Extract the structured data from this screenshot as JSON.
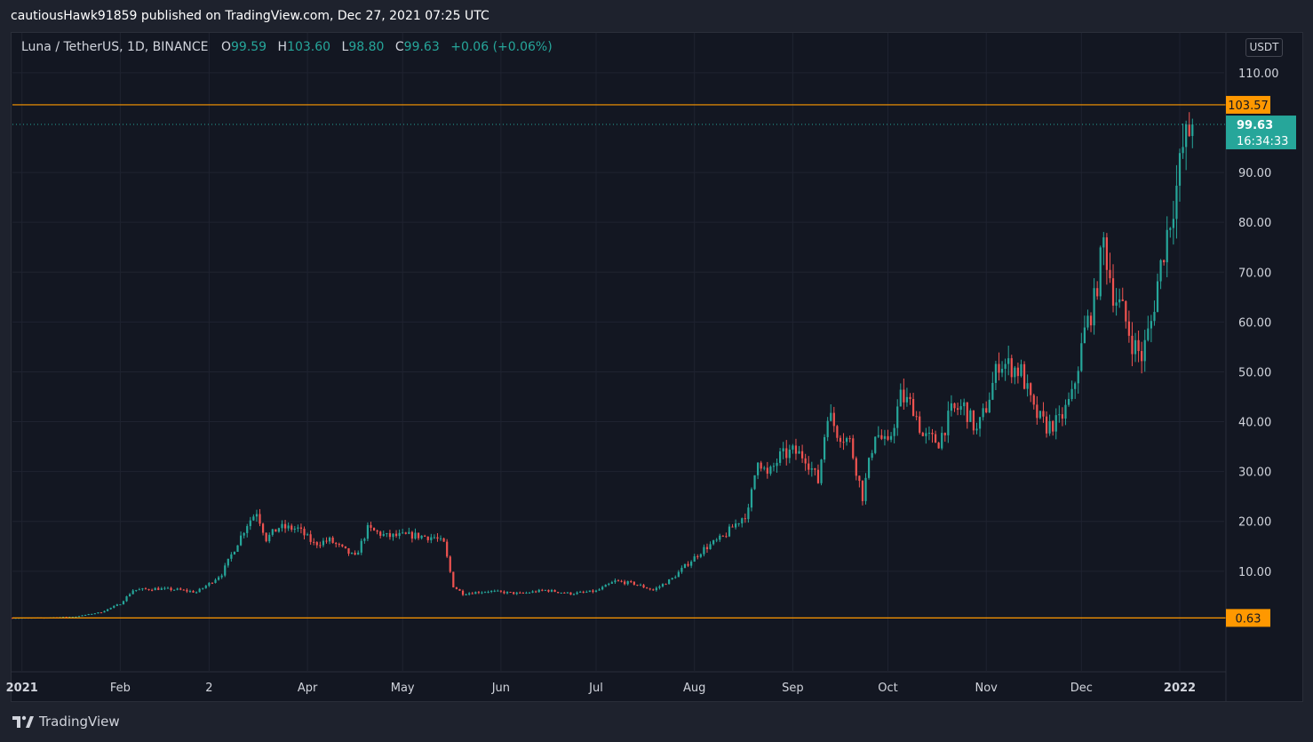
{
  "header": {
    "publish_text": "cautiousHawk91859 published on TradingView.com, Dec 27, 2021 07:25 UTC"
  },
  "legend": {
    "symbol": "Luna / TetherUS, 1D, BINANCE",
    "open_label": "O",
    "open": "99.59",
    "high_label": "H",
    "high": "103.60",
    "low_label": "L",
    "low": "98.80",
    "close_label": "C",
    "close": "99.63",
    "change": "+0.06 (+0.06%)"
  },
  "currency": "USDT",
  "footer": {
    "brand": "TradingView",
    "logo_icon": "tradingview-logo-icon"
  },
  "colors": {
    "up": "#26a69a",
    "down": "#ef5350",
    "hline": "#ff9800",
    "grid": "#1f2330",
    "text": "#d1d4dc",
    "background": "#131722"
  },
  "chart_data": {
    "type": "candlestick",
    "symbol": "LUNA/USDT",
    "interval": "1D",
    "ylim": [
      -10,
      118
    ],
    "y_ticks": [
      "10.00",
      "20.00",
      "30.00",
      "40.00",
      "50.00",
      "60.00",
      "70.00",
      "80.00",
      "90.00",
      "110.00"
    ],
    "y_tick_values": [
      10,
      20,
      30,
      40,
      50,
      60,
      70,
      80,
      90,
      110
    ],
    "x_ticks": [
      {
        "label": "2021",
        "day": 3,
        "bold": true
      },
      {
        "label": "Feb",
        "day": 34,
        "bold": false
      },
      {
        "label": "2",
        "day": 62,
        "bold": false
      },
      {
        "label": "Apr",
        "day": 93,
        "bold": false
      },
      {
        "label": "May",
        "day": 123,
        "bold": false
      },
      {
        "label": "Jun",
        "day": 154,
        "bold": false
      },
      {
        "label": "Jul",
        "day": 184,
        "bold": false
      },
      {
        "label": "Aug",
        "day": 215,
        "bold": false
      },
      {
        "label": "Sep",
        "day": 246,
        "bold": false
      },
      {
        "label": "Oct",
        "day": 276,
        "bold": false
      },
      {
        "label": "Nov",
        "day": 307,
        "bold": false
      },
      {
        "label": "Dec",
        "day": 337,
        "bold": false
      },
      {
        "label": "2022",
        "day": 368,
        "bold": true
      }
    ],
    "x_day_range": [
      0,
      382
    ],
    "horizontal_lines": [
      {
        "value": 103.57,
        "label": "103.57"
      },
      {
        "value": 0.63,
        "label": "0.63"
      }
    ],
    "last_price": {
      "value": 99.63,
      "label": "99.63",
      "countdown": "16:34:33"
    },
    "close_anchors": [
      [
        0,
        0.65
      ],
      [
        10,
        0.68
      ],
      [
        20,
        0.9
      ],
      [
        28,
        1.8
      ],
      [
        34,
        3.5
      ],
      [
        38,
        6.2
      ],
      [
        45,
        6.5
      ],
      [
        52,
        6.3
      ],
      [
        58,
        5.8
      ],
      [
        62,
        7.5
      ],
      [
        66,
        9.5
      ],
      [
        70,
        14.5
      ],
      [
        74,
        19.5
      ],
      [
        77,
        22.0
      ],
      [
        80,
        16.5
      ],
      [
        84,
        18.8
      ],
      [
        90,
        18.5
      ],
      [
        95,
        15.5
      ],
      [
        100,
        16.2
      ],
      [
        104,
        14.5
      ],
      [
        108,
        12.8
      ],
      [
        112,
        18.5
      ],
      [
        118,
        17.0
      ],
      [
        126,
        17.2
      ],
      [
        133,
        16.8
      ],
      [
        136,
        15.5
      ],
      [
        139,
        7.0
      ],
      [
        142,
        5.5
      ],
      [
        150,
        6.0
      ],
      [
        160,
        5.5
      ],
      [
        168,
        6.2
      ],
      [
        176,
        5.5
      ],
      [
        184,
        6.0
      ],
      [
        190,
        8.0
      ],
      [
        196,
        7.5
      ],
      [
        202,
        6.2
      ],
      [
        208,
        8.5
      ],
      [
        212,
        11.0
      ],
      [
        218,
        14.5
      ],
      [
        224,
        16.8
      ],
      [
        228,
        19.5
      ],
      [
        232,
        22.0
      ],
      [
        235,
        33.0
      ],
      [
        238,
        29.0
      ],
      [
        242,
        33.0
      ],
      [
        246,
        34.0
      ],
      [
        250,
        33.0
      ],
      [
        254,
        28.0
      ],
      [
        257,
        42.0
      ],
      [
        260,
        38.0
      ],
      [
        264,
        36.0
      ],
      [
        268,
        25.0
      ],
      [
        272,
        38.0
      ],
      [
        276,
        35.0
      ],
      [
        280,
        45.0
      ],
      [
        284,
        43.0
      ],
      [
        287,
        37.0
      ],
      [
        292,
        36.0
      ],
      [
        296,
        42.0
      ],
      [
        300,
        43.0
      ],
      [
        304,
        38.0
      ],
      [
        307,
        43.0
      ],
      [
        311,
        52.0
      ],
      [
        315,
        51.0
      ],
      [
        318,
        50.0
      ],
      [
        322,
        42.0
      ],
      [
        326,
        39.0
      ],
      [
        330,
        40.0
      ],
      [
        334,
        45.0
      ],
      [
        338,
        58.0
      ],
      [
        341,
        64.0
      ],
      [
        344,
        76.0
      ],
      [
        347,
        66.0
      ],
      [
        350,
        62.0
      ],
      [
        353,
        56.0
      ],
      [
        356,
        53.0
      ],
      [
        359,
        60.0
      ],
      [
        361,
        68.0
      ],
      [
        364,
        78.0
      ],
      [
        367,
        87.0
      ],
      [
        369,
        95.0
      ],
      [
        372,
        99.63
      ]
    ]
  }
}
